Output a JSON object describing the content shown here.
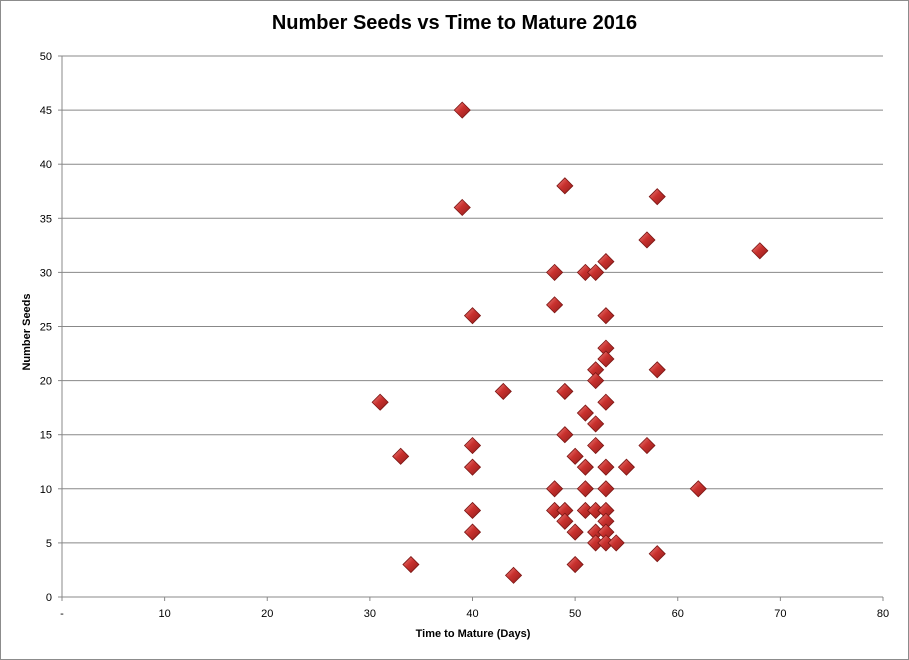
{
  "chart_data": {
    "type": "scatter",
    "title": "Number Seeds vs Time to Mature 2016",
    "xlabel": "Time to Mature (Days)",
    "ylabel": "Number Seeds",
    "xlim": [
      0,
      80
    ],
    "ylim": [
      0,
      50
    ],
    "x_ticks": [
      "-",
      "10",
      "20",
      "30",
      "40",
      "50",
      "60",
      "70",
      "80"
    ],
    "y_ticks": [
      "0",
      "5",
      "10",
      "15",
      "20",
      "25",
      "30",
      "35",
      "40",
      "45",
      "50"
    ],
    "grid": "horizontal",
    "legend": "none",
    "marker_color": "#c0302e",
    "marker": "diamond",
    "points": [
      {
        "x": 31,
        "y": 18
      },
      {
        "x": 33,
        "y": 13
      },
      {
        "x": 34,
        "y": 3
      },
      {
        "x": 39,
        "y": 45
      },
      {
        "x": 39,
        "y": 36
      },
      {
        "x": 40,
        "y": 26
      },
      {
        "x": 40,
        "y": 14
      },
      {
        "x": 40,
        "y": 12
      },
      {
        "x": 40,
        "y": 8
      },
      {
        "x": 40,
        "y": 6
      },
      {
        "x": 43,
        "y": 19
      },
      {
        "x": 44,
        "y": 2
      },
      {
        "x": 48,
        "y": 30
      },
      {
        "x": 48,
        "y": 27
      },
      {
        "x": 48,
        "y": 10
      },
      {
        "x": 48,
        "y": 8
      },
      {
        "x": 49,
        "y": 38
      },
      {
        "x": 49,
        "y": 19
      },
      {
        "x": 49,
        "y": 15
      },
      {
        "x": 49,
        "y": 8
      },
      {
        "x": 49,
        "y": 7
      },
      {
        "x": 50,
        "y": 13
      },
      {
        "x": 50,
        "y": 6
      },
      {
        "x": 50,
        "y": 3
      },
      {
        "x": 51,
        "y": 30
      },
      {
        "x": 51,
        "y": 17
      },
      {
        "x": 51,
        "y": 12
      },
      {
        "x": 51,
        "y": 10
      },
      {
        "x": 51,
        "y": 8
      },
      {
        "x": 52,
        "y": 30
      },
      {
        "x": 52,
        "y": 21
      },
      {
        "x": 52,
        "y": 20
      },
      {
        "x": 52,
        "y": 16
      },
      {
        "x": 52,
        "y": 14
      },
      {
        "x": 52,
        "y": 8
      },
      {
        "x": 52,
        "y": 6
      },
      {
        "x": 52,
        "y": 5
      },
      {
        "x": 53,
        "y": 31
      },
      {
        "x": 53,
        "y": 26
      },
      {
        "x": 53,
        "y": 23
      },
      {
        "x": 53,
        "y": 22
      },
      {
        "x": 53,
        "y": 18
      },
      {
        "x": 53,
        "y": 12
      },
      {
        "x": 53,
        "y": 10
      },
      {
        "x": 53,
        "y": 8
      },
      {
        "x": 53,
        "y": 7
      },
      {
        "x": 53,
        "y": 6
      },
      {
        "x": 53,
        "y": 5
      },
      {
        "x": 54,
        "y": 5
      },
      {
        "x": 55,
        "y": 12
      },
      {
        "x": 57,
        "y": 33
      },
      {
        "x": 57,
        "y": 14
      },
      {
        "x": 58,
        "y": 37
      },
      {
        "x": 58,
        "y": 21
      },
      {
        "x": 58,
        "y": 4
      },
      {
        "x": 62,
        "y": 10
      },
      {
        "x": 68,
        "y": 32
      }
    ]
  }
}
